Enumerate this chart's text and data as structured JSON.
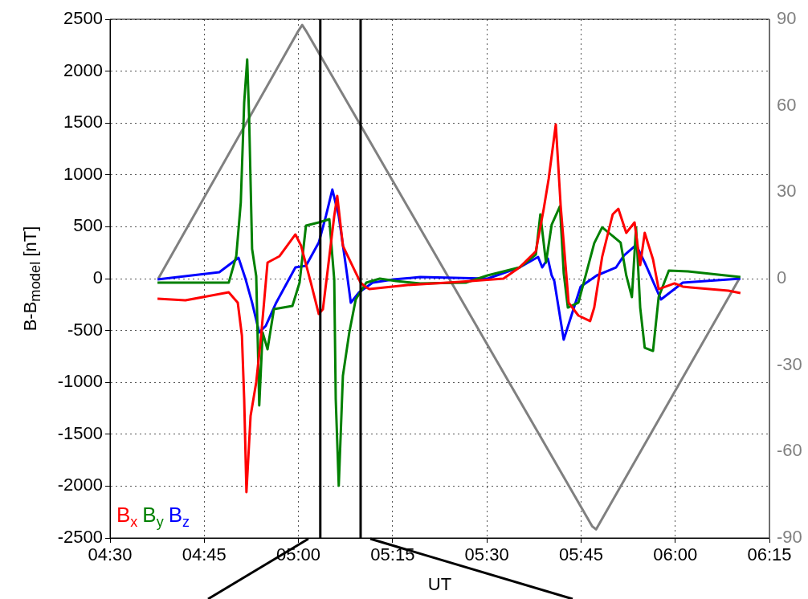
{
  "chart_data": {
    "type": "line",
    "xlabel": "UT",
    "ylabel": "B-B$_{model}$ [nT]",
    "xlim": [
      4.5,
      6.25
    ],
    "xticks": [
      {
        "value": 4.5,
        "label": "04:30"
      },
      {
        "value": 4.75,
        "label": "04:45"
      },
      {
        "value": 5,
        "label": "05:00"
      },
      {
        "value": 5.25,
        "label": "05:15"
      },
      {
        "value": 5.5,
        "label": "05:30"
      },
      {
        "value": 5.75,
        "label": "05:45"
      },
      {
        "value": 6,
        "label": "06:00"
      },
      {
        "value": 6.25,
        "label": "06:15"
      }
    ],
    "ylim": [
      -2500,
      2500
    ],
    "yticks": [
      -2500,
      -2000,
      -1500,
      -1000,
      -500,
      0,
      500,
      1000,
      1500,
      2000,
      2500
    ],
    "y2lim": [
      -90,
      90
    ],
    "y2ticks": [
      -90,
      -60,
      -30,
      0,
      30,
      60,
      90
    ],
    "grid": true,
    "legend": "bottom left",
    "marker": "none",
    "line_style": "solid",
    "ref_lines": [
      {
        "axis": "x",
        "value": 5.058,
        "color": "#000000"
      },
      {
        "axis": "x",
        "value": 5.165,
        "color": "#000000"
      }
    ],
    "series": [
      {
        "name": "B$_{x}$",
        "color": "#ff0000",
        "x": [
          4.626,
          4.7,
          4.815,
          4.839,
          4.85,
          4.856,
          4.862,
          4.873,
          4.888,
          4.901,
          4.918,
          4.95,
          4.992,
          5.007,
          5.033,
          5.054,
          5.065,
          5.078,
          5.095,
          5.103,
          5.118,
          5.139,
          5.165,
          5.18,
          5.188,
          5.289,
          5.429,
          5.544,
          5.587,
          5.63,
          5.651,
          5.664,
          5.683,
          5.696,
          5.717,
          5.743,
          5.774,
          5.785,
          5.806,
          5.834,
          5.849,
          5.87,
          5.892,
          5.907,
          5.919,
          5.941,
          5.956,
          5.998,
          6.02,
          6.041,
          6.141,
          6.173
        ],
        "values": [
          -194,
          -209,
          -132,
          -232,
          -550,
          -1161,
          -2059,
          -1324,
          -998,
          -550,
          155,
          217,
          426,
          317,
          -39,
          -341,
          -294,
          93,
          604,
          797,
          317,
          155,
          -39,
          -85,
          -100,
          -62,
          -31,
          0,
          108,
          263,
          673,
          960,
          1486,
          697,
          -232,
          -356,
          -410,
          -279,
          209,
          619,
          673,
          441,
          542,
          132,
          441,
          186,
          -101,
          -46,
          -77,
          -85,
          -116,
          -139
        ]
      },
      {
        "name": "B$_{y}$",
        "color": "#008000",
        "x": [
          4.626,
          4.815,
          4.835,
          4.847,
          4.856,
          4.864,
          4.869,
          4.877,
          4.888,
          4.896,
          4.905,
          4.918,
          4.935,
          4.984,
          5.003,
          5.02,
          5.054,
          5.082,
          5.095,
          5.099,
          5.107,
          5.118,
          5.135,
          5.152,
          5.18,
          5.216,
          5.259,
          5.323,
          5.444,
          5.502,
          5.587,
          5.63,
          5.642,
          5.657,
          5.672,
          5.694,
          5.704,
          5.715,
          5.743,
          5.785,
          5.806,
          5.855,
          5.87,
          5.885,
          5.896,
          5.907,
          5.919,
          5.941,
          5.956,
          5.983,
          6.034,
          6.173
        ],
        "values": [
          -39,
          -39,
          217,
          735,
          1695,
          2113,
          1571,
          286,
          23,
          -1223,
          -519,
          -681,
          -294,
          -263,
          -39,
          511,
          542,
          573,
          -8,
          -1161,
          -1997,
          -937,
          -519,
          -201,
          -39,
          0,
          -23,
          -46,
          -39,
          31,
          108,
          232,
          619,
          155,
          519,
          697,
          54,
          -279,
          -232,
          341,
          495,
          348,
          31,
          -178,
          495,
          -279,
          -666,
          -697,
          -178,
          77,
          70,
          15
        ]
      },
      {
        "name": "B$_{z}$",
        "color": "#0000ff",
        "x": [
          4.626,
          4.79,
          4.841,
          4.86,
          4.877,
          4.896,
          4.913,
          4.941,
          4.992,
          5.02,
          5.054,
          5.073,
          5.09,
          5.107,
          5.127,
          5.139,
          5.161,
          5.197,
          5.252,
          5.323,
          5.502,
          5.587,
          5.636,
          5.647,
          5.662,
          5.672,
          5.679,
          5.704,
          5.749,
          5.792,
          5.843,
          5.864,
          5.896,
          5.919,
          5.962,
          6.02,
          6.173
        ],
        "values": [
          -8,
          62,
          201,
          -8,
          -232,
          -519,
          -457,
          -232,
          108,
          124,
          348,
          604,
          859,
          604,
          93,
          -232,
          -132,
          -39,
          -8,
          15,
          0,
          108,
          209,
          108,
          193,
          31,
          -23,
          -588,
          -77,
          31,
          108,
          224,
          325,
          155,
          -201,
          -39,
          0
        ]
      },
      {
        "color": "#808080",
        "axis": "y2",
        "x": [
          4.628,
          5.0,
          5.01,
          5.02,
          5.78,
          5.79,
          6.17
        ],
        "values": [
          0,
          86,
          88,
          86,
          -86,
          -87,
          0
        ]
      }
    ]
  }
}
